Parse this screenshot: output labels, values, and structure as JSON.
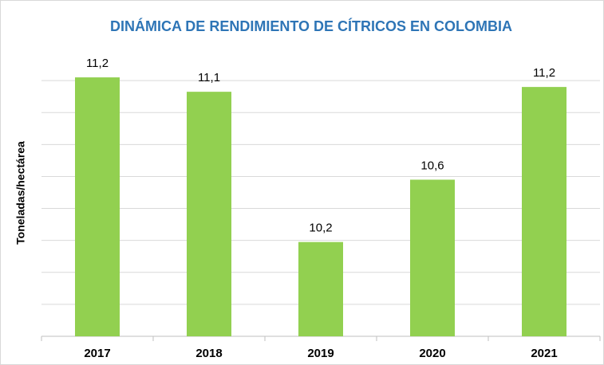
{
  "chart_data": {
    "type": "bar",
    "title": "DINÁMICA DE RENDIMIENTO DE CÍTRICOS EN COLOMBIA",
    "y_label": "Toneladas/hectárea",
    "categories": [
      "2017",
      "2018",
      "2019",
      "2020",
      "2021"
    ],
    "values": [
      11.22,
      11.13,
      10.19,
      10.58,
      11.16
    ],
    "value_labels": [
      "11,2",
      "11,1",
      "10,2",
      "10,6",
      "11,2"
    ],
    "color": "#92d050",
    "ylim": [
      9.6,
      11.4
    ],
    "yticks": [
      9.6,
      9.8,
      10.0,
      10.2,
      10.4,
      10.6,
      10.8,
      11.0,
      11.2
    ],
    "grid": true
  }
}
